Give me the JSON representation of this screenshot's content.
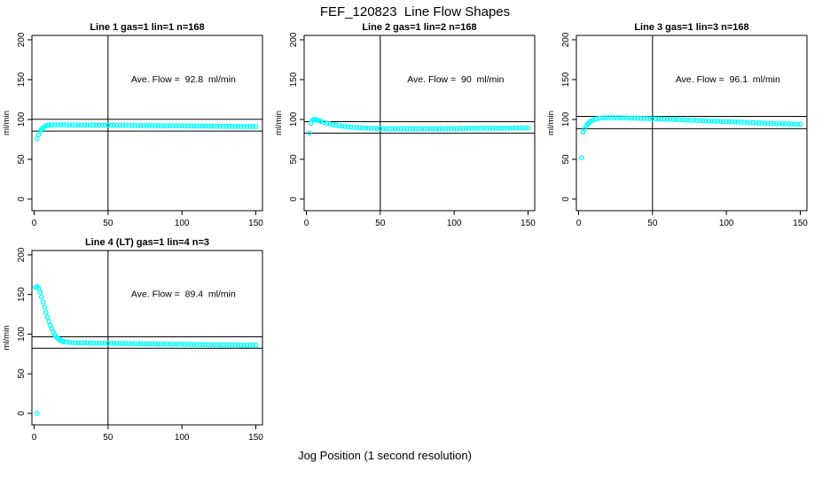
{
  "main_title": "FEF_120823  Line Flow Shapes",
  "x_axis_label": "Jog Position (1 second resolution)",
  "colors": {
    "point": "#00ffff",
    "line": "#000000",
    "background": "#ffffff"
  },
  "chart_data": [
    {
      "type": "scatter",
      "title": "Line 1 gas=1 lin=1 n=168",
      "ylabel": "ml/min",
      "annotation": "Ave. Flow =  92.8  ml/min",
      "ave_flow": 92.8,
      "annotation_xy": [
        101,
        150
      ],
      "xticks": [
        0,
        50,
        100,
        150
      ],
      "yticks": [
        0,
        50,
        100,
        150,
        200
      ],
      "xlim": [
        -1.5,
        154.5
      ],
      "ylim": [
        -14.5,
        205.5
      ],
      "grid": false,
      "vline_x": 50,
      "hlines": [
        100.2,
        85.4
      ],
      "points": [
        [
          2,
          76
        ],
        [
          3,
          81
        ],
        [
          4,
          85
        ],
        [
          5,
          87.5
        ],
        [
          6,
          89.5
        ],
        [
          7,
          91
        ],
        [
          8,
          92
        ],
        [
          9,
          92.6
        ],
        [
          10,
          93
        ],
        [
          12,
          93.2
        ],
        [
          14,
          93.3
        ],
        [
          16,
          93.3
        ],
        [
          18,
          93.3
        ],
        [
          20,
          93.3
        ],
        [
          22,
          93.2
        ],
        [
          24,
          93.2
        ],
        [
          26,
          93.2
        ],
        [
          28,
          93.1
        ],
        [
          30,
          93.1
        ],
        [
          32,
          93.1
        ],
        [
          34,
          93
        ],
        [
          36,
          93
        ],
        [
          38,
          93
        ],
        [
          40,
          92.9
        ],
        [
          42,
          92.9
        ],
        [
          44,
          92.9
        ],
        [
          46,
          92.8
        ],
        [
          48,
          92.8
        ],
        [
          50,
          92.8
        ],
        [
          52,
          92.7
        ],
        [
          54,
          92.7
        ],
        [
          56,
          92.7
        ],
        [
          58,
          92.6
        ],
        [
          60,
          92.6
        ],
        [
          62,
          92.6
        ],
        [
          64,
          92.5
        ],
        [
          66,
          92.5
        ],
        [
          68,
          92.5
        ],
        [
          70,
          92.4
        ],
        [
          72,
          92.4
        ],
        [
          74,
          92.4
        ],
        [
          76,
          92.3
        ],
        [
          78,
          92.3
        ],
        [
          80,
          92.3
        ],
        [
          82,
          92.2
        ],
        [
          84,
          92.2
        ],
        [
          86,
          92.2
        ],
        [
          88,
          92.1
        ],
        [
          90,
          92.1
        ],
        [
          92,
          92.1
        ],
        [
          94,
          92
        ],
        [
          96,
          92
        ],
        [
          98,
          92
        ],
        [
          100,
          91.9
        ],
        [
          102,
          91.9
        ],
        [
          104,
          91.9
        ],
        [
          106,
          91.8
        ],
        [
          108,
          91.8
        ],
        [
          110,
          91.8
        ],
        [
          112,
          91.7
        ],
        [
          114,
          91.7
        ],
        [
          116,
          91.7
        ],
        [
          118,
          91.6
        ],
        [
          120,
          91.6
        ],
        [
          122,
          91.6
        ],
        [
          124,
          91.5
        ],
        [
          126,
          91.5
        ],
        [
          128,
          91.5
        ],
        [
          130,
          91.4
        ],
        [
          132,
          91.4
        ],
        [
          134,
          91.4
        ],
        [
          136,
          91.3
        ],
        [
          138,
          91.3
        ],
        [
          140,
          91.3
        ],
        [
          142,
          91.2
        ],
        [
          144,
          91.2
        ],
        [
          146,
          91.2
        ],
        [
          148,
          91.1
        ],
        [
          150,
          91.1
        ]
      ]
    },
    {
      "type": "scatter",
      "title": "Line 2 gas=1 lin=2 n=168",
      "ylabel": "ml/min",
      "annotation": "Ave. Flow =  90  ml/min",
      "ave_flow": 90,
      "annotation_xy": [
        101,
        150
      ],
      "xticks": [
        0,
        50,
        100,
        150
      ],
      "yticks": [
        0,
        50,
        100,
        150,
        200
      ],
      "xlim": [
        -1.5,
        154.5
      ],
      "ylim": [
        -14.5,
        205.5
      ],
      "grid": false,
      "vline_x": 50,
      "hlines": [
        97.2,
        82.8
      ],
      "points": [
        [
          2,
          83
        ],
        [
          3,
          95
        ],
        [
          4,
          99
        ],
        [
          5,
          100
        ],
        [
          6,
          100
        ],
        [
          7,
          99.5
        ],
        [
          8,
          99
        ],
        [
          9,
          98.2
        ],
        [
          10,
          97.5
        ],
        [
          12,
          96.2
        ],
        [
          14,
          95.2
        ],
        [
          16,
          94.3
        ],
        [
          18,
          93.5
        ],
        [
          20,
          92.8
        ],
        [
          22,
          92.2
        ],
        [
          24,
          91.7
        ],
        [
          26,
          91.2
        ],
        [
          28,
          90.8
        ],
        [
          30,
          90.4
        ],
        [
          32,
          90.1
        ],
        [
          34,
          89.8
        ],
        [
          36,
          89.6
        ],
        [
          38,
          89.4
        ],
        [
          40,
          89.2
        ],
        [
          42,
          89
        ],
        [
          44,
          88.9
        ],
        [
          46,
          88.8
        ],
        [
          48,
          88.7
        ],
        [
          50,
          88.6
        ],
        [
          52,
          88.5
        ],
        [
          54,
          88.5
        ],
        [
          56,
          88.4
        ],
        [
          58,
          88.4
        ],
        [
          60,
          88.4
        ],
        [
          62,
          88.4
        ],
        [
          64,
          88.4
        ],
        [
          66,
          88.4
        ],
        [
          68,
          88.4
        ],
        [
          70,
          88.4
        ],
        [
          72,
          88.4
        ],
        [
          74,
          88.4
        ],
        [
          76,
          88.4
        ],
        [
          78,
          88.4
        ],
        [
          80,
          88.5
        ],
        [
          82,
          88.5
        ],
        [
          84,
          88.5
        ],
        [
          86,
          88.5
        ],
        [
          88,
          88.5
        ],
        [
          90,
          88.5
        ],
        [
          92,
          88.5
        ],
        [
          94,
          88.6
        ],
        [
          96,
          88.6
        ],
        [
          98,
          88.6
        ],
        [
          100,
          88.6
        ],
        [
          102,
          88.6
        ],
        [
          104,
          88.7
        ],
        [
          106,
          88.7
        ],
        [
          108,
          88.7
        ],
        [
          110,
          88.7
        ],
        [
          112,
          88.8
        ],
        [
          114,
          88.8
        ],
        [
          116,
          88.8
        ],
        [
          118,
          88.8
        ],
        [
          120,
          88.9
        ],
        [
          122,
          88.9
        ],
        [
          124,
          88.9
        ],
        [
          126,
          89
        ],
        [
          128,
          89
        ],
        [
          130,
          89
        ],
        [
          132,
          89.1
        ],
        [
          134,
          89.1
        ],
        [
          136,
          89.1
        ],
        [
          138,
          89.2
        ],
        [
          140,
          89.2
        ],
        [
          142,
          89.2
        ],
        [
          144,
          89.3
        ],
        [
          146,
          89.3
        ],
        [
          148,
          89.3
        ],
        [
          150,
          89.4
        ]
      ]
    },
    {
      "type": "scatter",
      "title": "Line 3 gas=1 lin=3 n=168",
      "ylabel": "ml/min",
      "annotation": "Ave. Flow =  96.1  ml/min",
      "ave_flow": 96.1,
      "annotation_xy": [
        101,
        150
      ],
      "xticks": [
        0,
        50,
        100,
        150
      ],
      "yticks": [
        0,
        50,
        100,
        150,
        200
      ],
      "xlim": [
        -1.5,
        154.5
      ],
      "ylim": [
        -14.5,
        205.5
      ],
      "grid": false,
      "vline_x": 50,
      "hlines": [
        103.8,
        88.4
      ],
      "points": [
        [
          2,
          52
        ],
        [
          3,
          84
        ],
        [
          4,
          88
        ],
        [
          5,
          91.5
        ],
        [
          6,
          94
        ],
        [
          7,
          96
        ],
        [
          8,
          97.5
        ],
        [
          9,
          98.7
        ],
        [
          10,
          99.6
        ],
        [
          12,
          100.8
        ],
        [
          14,
          101.5
        ],
        [
          16,
          101.9
        ],
        [
          18,
          102.1
        ],
        [
          20,
          102.2
        ],
        [
          22,
          102.2
        ],
        [
          24,
          102.2
        ],
        [
          26,
          102.1
        ],
        [
          28,
          102.1
        ],
        [
          30,
          102
        ],
        [
          32,
          101.9
        ],
        [
          34,
          101.8
        ],
        [
          36,
          101.7
        ],
        [
          38,
          101.6
        ],
        [
          40,
          101.5
        ],
        [
          42,
          101.4
        ],
        [
          44,
          101.3
        ],
        [
          46,
          101.2
        ],
        [
          48,
          101.1
        ],
        [
          50,
          101
        ],
        [
          52,
          100.8
        ],
        [
          54,
          100.7
        ],
        [
          56,
          100.6
        ],
        [
          58,
          100.4
        ],
        [
          60,
          100.3
        ],
        [
          62,
          100.1
        ],
        [
          64,
          100
        ],
        [
          66,
          99.8
        ],
        [
          68,
          99.7
        ],
        [
          70,
          99.5
        ],
        [
          72,
          99.4
        ],
        [
          74,
          99.2
        ],
        [
          76,
          99.1
        ],
        [
          78,
          98.9
        ],
        [
          80,
          98.8
        ],
        [
          82,
          98.6
        ],
        [
          84,
          98.5
        ],
        [
          86,
          98.3
        ],
        [
          88,
          98.2
        ],
        [
          90,
          98
        ],
        [
          92,
          97.9
        ],
        [
          94,
          97.7
        ],
        [
          96,
          97.6
        ],
        [
          98,
          97.4
        ],
        [
          100,
          97.3
        ],
        [
          102,
          97.1
        ],
        [
          104,
          97
        ],
        [
          106,
          96.8
        ],
        [
          108,
          96.7
        ],
        [
          110,
          96.5
        ],
        [
          112,
          96.4
        ],
        [
          114,
          96.2
        ],
        [
          116,
          96.1
        ],
        [
          118,
          95.9
        ],
        [
          120,
          95.8
        ],
        [
          122,
          95.6
        ],
        [
          124,
          95.5
        ],
        [
          126,
          95.3
        ],
        [
          128,
          95.2
        ],
        [
          130,
          95
        ],
        [
          132,
          94.9
        ],
        [
          134,
          94.8
        ],
        [
          136,
          94.7
        ],
        [
          138,
          94.6
        ],
        [
          140,
          94.5
        ],
        [
          142,
          94.4
        ],
        [
          144,
          94.3
        ],
        [
          146,
          94.2
        ],
        [
          148,
          94.1
        ],
        [
          150,
          94
        ]
      ]
    },
    {
      "type": "scatter",
      "title": "Line 4 (LT) gas=1 lin=4 n=3",
      "ylabel": "ml/min",
      "annotation": "Ave. Flow =  89.4  ml/min",
      "ave_flow": 89.4,
      "annotation_xy": [
        101,
        150
      ],
      "xticks": [
        0,
        50,
        100,
        150
      ],
      "yticks": [
        0,
        50,
        100,
        150,
        200
      ],
      "xlim": [
        -1.5,
        154.5
      ],
      "ylim": [
        -14.5,
        205.5
      ],
      "grid": false,
      "vline_x": 50,
      "hlines": [
        96.6,
        82.2
      ],
      "points": [
        [
          1,
          159
        ],
        [
          2,
          160
        ],
        [
          2,
          0
        ],
        [
          3,
          158
        ],
        [
          4,
          153
        ],
        [
          5,
          147
        ],
        [
          6,
          140.5
        ],
        [
          7,
          134
        ],
        [
          8,
          127.5
        ],
        [
          9,
          121.5
        ],
        [
          10,
          116
        ],
        [
          11,
          111
        ],
        [
          12,
          106.5
        ],
        [
          13,
          102.5
        ],
        [
          14,
          99
        ],
        [
          15,
          96.5
        ],
        [
          16,
          94.5
        ],
        [
          17,
          93
        ],
        [
          18,
          92
        ],
        [
          19,
          91.2
        ],
        [
          20,
          90.6
        ],
        [
          22,
          90
        ],
        [
          24,
          89.6
        ],
        [
          26,
          89.3
        ],
        [
          28,
          89.1
        ],
        [
          30,
          89
        ],
        [
          32,
          88.9
        ],
        [
          34,
          88.8
        ],
        [
          36,
          88.8
        ],
        [
          38,
          88.7
        ],
        [
          40,
          88.7
        ],
        [
          42,
          88.6
        ],
        [
          44,
          88.6
        ],
        [
          46,
          88.5
        ],
        [
          48,
          88.5
        ],
        [
          50,
          88.4
        ],
        [
          52,
          88.4
        ],
        [
          54,
          88.3
        ],
        [
          56,
          88.3
        ],
        [
          58,
          88.2
        ],
        [
          60,
          88.2
        ],
        [
          62,
          88.1
        ],
        [
          64,
          88.1
        ],
        [
          66,
          88
        ],
        [
          68,
          88
        ],
        [
          70,
          87.9
        ],
        [
          72,
          87.9
        ],
        [
          74,
          87.8
        ],
        [
          76,
          87.8
        ],
        [
          78,
          87.7
        ],
        [
          80,
          87.7
        ],
        [
          82,
          87.6
        ],
        [
          84,
          87.6
        ],
        [
          86,
          87.5
        ],
        [
          88,
          87.5
        ],
        [
          90,
          87.4
        ],
        [
          92,
          87.4
        ],
        [
          94,
          87.3
        ],
        [
          96,
          87.3
        ],
        [
          98,
          87.2
        ],
        [
          100,
          87.2
        ],
        [
          102,
          87.1
        ],
        [
          104,
          87.1
        ],
        [
          106,
          87
        ],
        [
          108,
          87
        ],
        [
          110,
          86.9
        ],
        [
          112,
          86.9
        ],
        [
          114,
          86.8
        ],
        [
          116,
          86.8
        ],
        [
          118,
          86.7
        ],
        [
          120,
          86.7
        ],
        [
          122,
          86.6
        ],
        [
          124,
          86.6
        ],
        [
          126,
          86.5
        ],
        [
          128,
          86.5
        ],
        [
          130,
          86.4
        ],
        [
          132,
          86.4
        ],
        [
          134,
          86.3
        ],
        [
          136,
          86.3
        ],
        [
          138,
          86.2
        ],
        [
          140,
          86.2
        ],
        [
          142,
          86.1
        ],
        [
          144,
          86.1
        ],
        [
          146,
          86
        ],
        [
          148,
          86
        ],
        [
          150,
          85.9
        ]
      ]
    }
  ]
}
